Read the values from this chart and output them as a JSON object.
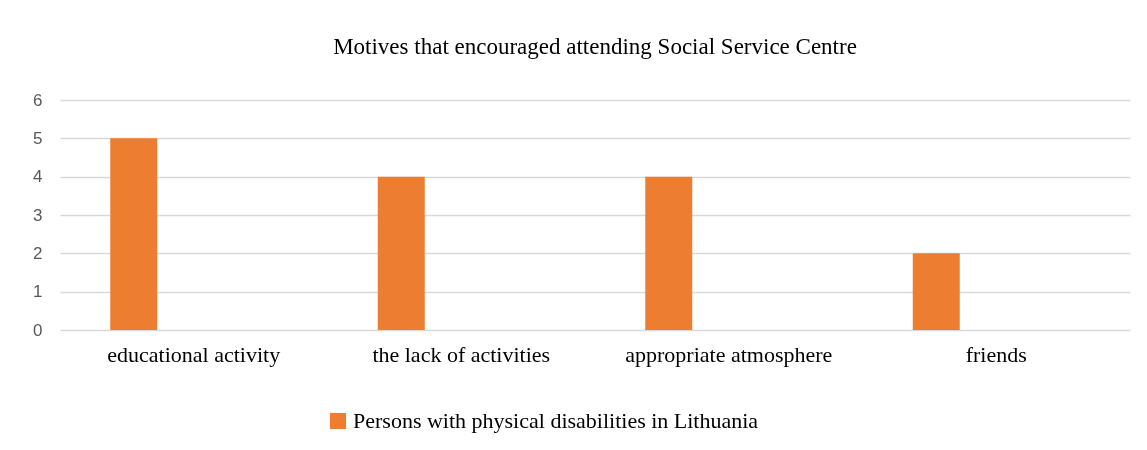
{
  "chart_data": {
    "type": "bar",
    "title": "Motives that encouraged attending Social Service Centre",
    "categories": [
      "educational activity",
      "the lack of activities",
      "appropriate atmosphere",
      "friends"
    ],
    "series": [
      {
        "name": "Persons with physical disabilities in Lithuania",
        "color": "#ed7d31",
        "values": [
          5,
          4,
          4,
          2
        ]
      }
    ],
    "ylim": [
      0,
      6
    ],
    "yticks": [
      0,
      1,
      2,
      3,
      4,
      5,
      6
    ],
    "grid": "y",
    "legend": "bottom"
  }
}
